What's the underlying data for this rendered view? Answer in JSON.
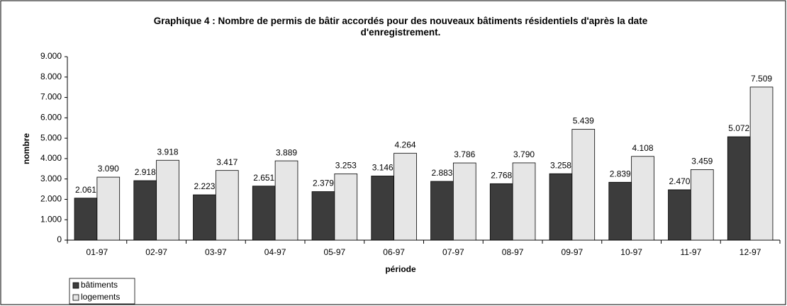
{
  "chart_data": {
    "type": "bar",
    "title": "Graphique 4 : Nombre de permis de bâtir accordés pour des nouveaux bâtiments résidentiels d'après la date d'enregistrement.",
    "x_label": "période",
    "y_label": "nombre",
    "categories": [
      "01-97",
      "02-97",
      "03-97",
      "04-97",
      "05-97",
      "06-97",
      "07-97",
      "08-97",
      "09-97",
      "10-97",
      "11-97",
      "12-97"
    ],
    "series": [
      {
        "name": "bâtiments",
        "color": "#3c3c3c",
        "values": [
          2061,
          2918,
          2223,
          2651,
          2379,
          3146,
          2883,
          2768,
          3258,
          2839,
          2470,
          5072
        ],
        "value_labels": [
          "2.061",
          "2.918",
          "2.223",
          "2.651",
          "2.379",
          "3.146",
          "2.883",
          "2.768",
          "3.258",
          "2.839",
          "2.470",
          "5.072"
        ]
      },
      {
        "name": "logements",
        "color": "#e6e6e6",
        "values": [
          3090,
          3918,
          3417,
          3889,
          3253,
          4264,
          3786,
          3790,
          5439,
          4108,
          3459,
          7509
        ],
        "value_labels": [
          "3.090",
          "3.918",
          "3.417",
          "3.889",
          "3.253",
          "4.264",
          "3.786",
          "3.790",
          "5.439",
          "4.108",
          "3.459",
          "7.509"
        ]
      }
    ],
    "ylim": [
      0,
      9000
    ],
    "yticks": [
      0,
      {
        "value": 1000,
        "label": "1.000"
      },
      {
        "value": 2000,
        "label": "2.000"
      },
      {
        "value": 3000,
        "label": "3.000"
      },
      {
        "value": 4000,
        "label": "4.000"
      },
      {
        "value": 5000,
        "label": "5.000"
      },
      {
        "value": 6000,
        "label": "6.000"
      },
      {
        "value": 7000,
        "label": "7.000"
      },
      {
        "value": 8000,
        "label": "8.000"
      },
      {
        "value": 9000,
        "label": "9.000"
      }
    ],
    "grid": false,
    "legend": "bottom-left"
  }
}
